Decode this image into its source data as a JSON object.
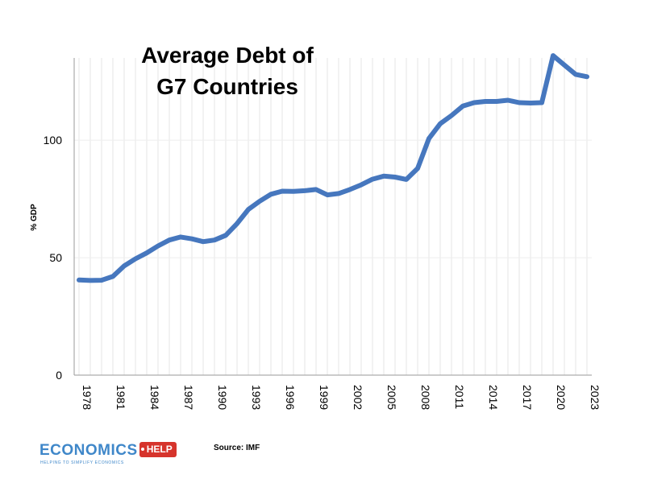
{
  "chart_data": {
    "type": "line",
    "title": [
      "Average Debt of",
      "G7 Countries"
    ],
    "ylabel": "% GDP",
    "ylim": [
      0,
      135
    ],
    "yticks": [
      0,
      50,
      100
    ],
    "x": [
      1978,
      1979,
      1980,
      1981,
      1982,
      1983,
      1984,
      1985,
      1986,
      1987,
      1988,
      1989,
      1990,
      1991,
      1992,
      1993,
      1994,
      1995,
      1996,
      1997,
      1998,
      1999,
      2000,
      2001,
      2002,
      2003,
      2004,
      2005,
      2006,
      2007,
      2008,
      2009,
      2010,
      2011,
      2012,
      2013,
      2014,
      2015,
      2016,
      2017,
      2018,
      2019,
      2020,
      2021,
      2022,
      2023
    ],
    "xticks": [
      "1978",
      "1981",
      "1984",
      "1987",
      "1990",
      "1993",
      "1996",
      "1999",
      "2002",
      "2005",
      "2008",
      "2011",
      "2014",
      "2017",
      "2020",
      "2023"
    ],
    "series": [
      {
        "values": [
          40.5,
          40.3,
          40.4,
          42.0,
          46.5,
          49.5,
          52.0,
          55.0,
          57.5,
          58.8,
          58.0,
          56.8,
          57.5,
          59.5,
          64.5,
          70.5,
          74.0,
          77.0,
          78.3,
          78.2,
          78.5,
          79.0,
          76.7,
          77.3,
          79.0,
          81.0,
          83.4,
          84.7,
          84.3,
          83.3,
          88.0,
          100.7,
          107.0,
          110.5,
          114.5,
          116.0,
          116.5,
          116.5,
          117.0,
          116.0,
          115.8,
          116.0,
          136.0,
          132.0,
          128.0,
          127.0
        ],
        "color": "#4677be"
      }
    ],
    "grid": "vertical lines at every year",
    "legend": "none"
  },
  "source_text": "Source: IMF",
  "logo": {
    "word": "ECONOMICS",
    "tag": "HELP",
    "tagline": "HELPING TO SIMPLIFY ECONOMICS",
    "color": "#3f87c9",
    "tag_color": "#d6342c"
  }
}
